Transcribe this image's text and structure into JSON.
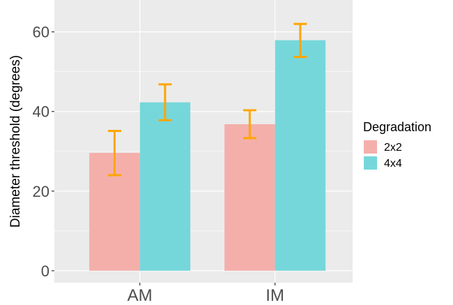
{
  "chart_data": {
    "type": "bar",
    "categories": [
      "AM",
      "IM"
    ],
    "ylabel": "Diameter threshold (degrees)",
    "xlabel": "",
    "ylim": [
      -3,
      68
    ],
    "yticks": [
      0,
      20,
      40,
      60
    ],
    "grid": true,
    "legend_position": "right",
    "legend_title": "Degradation",
    "series": [
      {
        "name": "2x2",
        "color": "#F4AFAB",
        "values": [
          29.6,
          36.8
        ],
        "error_low": [
          24.0,
          33.3
        ],
        "error_high": [
          35.1,
          40.3
        ]
      },
      {
        "name": "4x4",
        "color": "#76D7DB",
        "values": [
          42.3,
          57.9
        ],
        "error_low": [
          37.8,
          53.7
        ],
        "error_high": [
          46.8,
          62.0
        ]
      }
    ],
    "error_bar_color": "#FFA500"
  }
}
